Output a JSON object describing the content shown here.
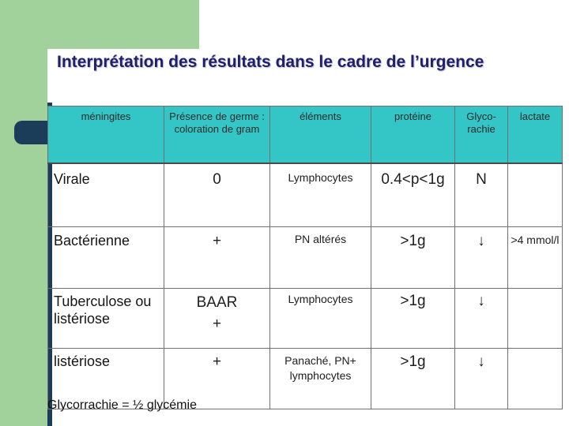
{
  "slide": {
    "title": "Interprétation des résultats dans le cadre de l’urgence",
    "footnote": "Glycorrachie = ½ glycémie"
  },
  "table": {
    "headers": [
      "méningites",
      "Présence de germe : coloration de gram",
      "éléments",
      "protéine",
      "Glyco-\nrachie",
      "lactate"
    ],
    "rows": [
      {
        "label": "Virale",
        "germe": "0",
        "elements": "Lymphocytes",
        "proteine": "0.4<p<1g",
        "glyco": "N",
        "lactate": ""
      },
      {
        "label": "Bactérienne",
        "germe": "+",
        "elements": "PN altérés",
        "proteine": ">1g",
        "glyco": "↓",
        "lactate": ">4 mmol/l"
      },
      {
        "label": "Tuberculose ou listériose",
        "germe": "BAAR\n+",
        "elements": "Lymphocytes",
        "proteine": ">1g",
        "glyco": "↓",
        "lactate": ""
      },
      {
        "label": "listériose",
        "germe": "+",
        "elements": "Panaché, PN+ lymphocytes",
        "proteine": ">1g",
        "glyco": "↓",
        "lactate": ""
      }
    ]
  }
}
